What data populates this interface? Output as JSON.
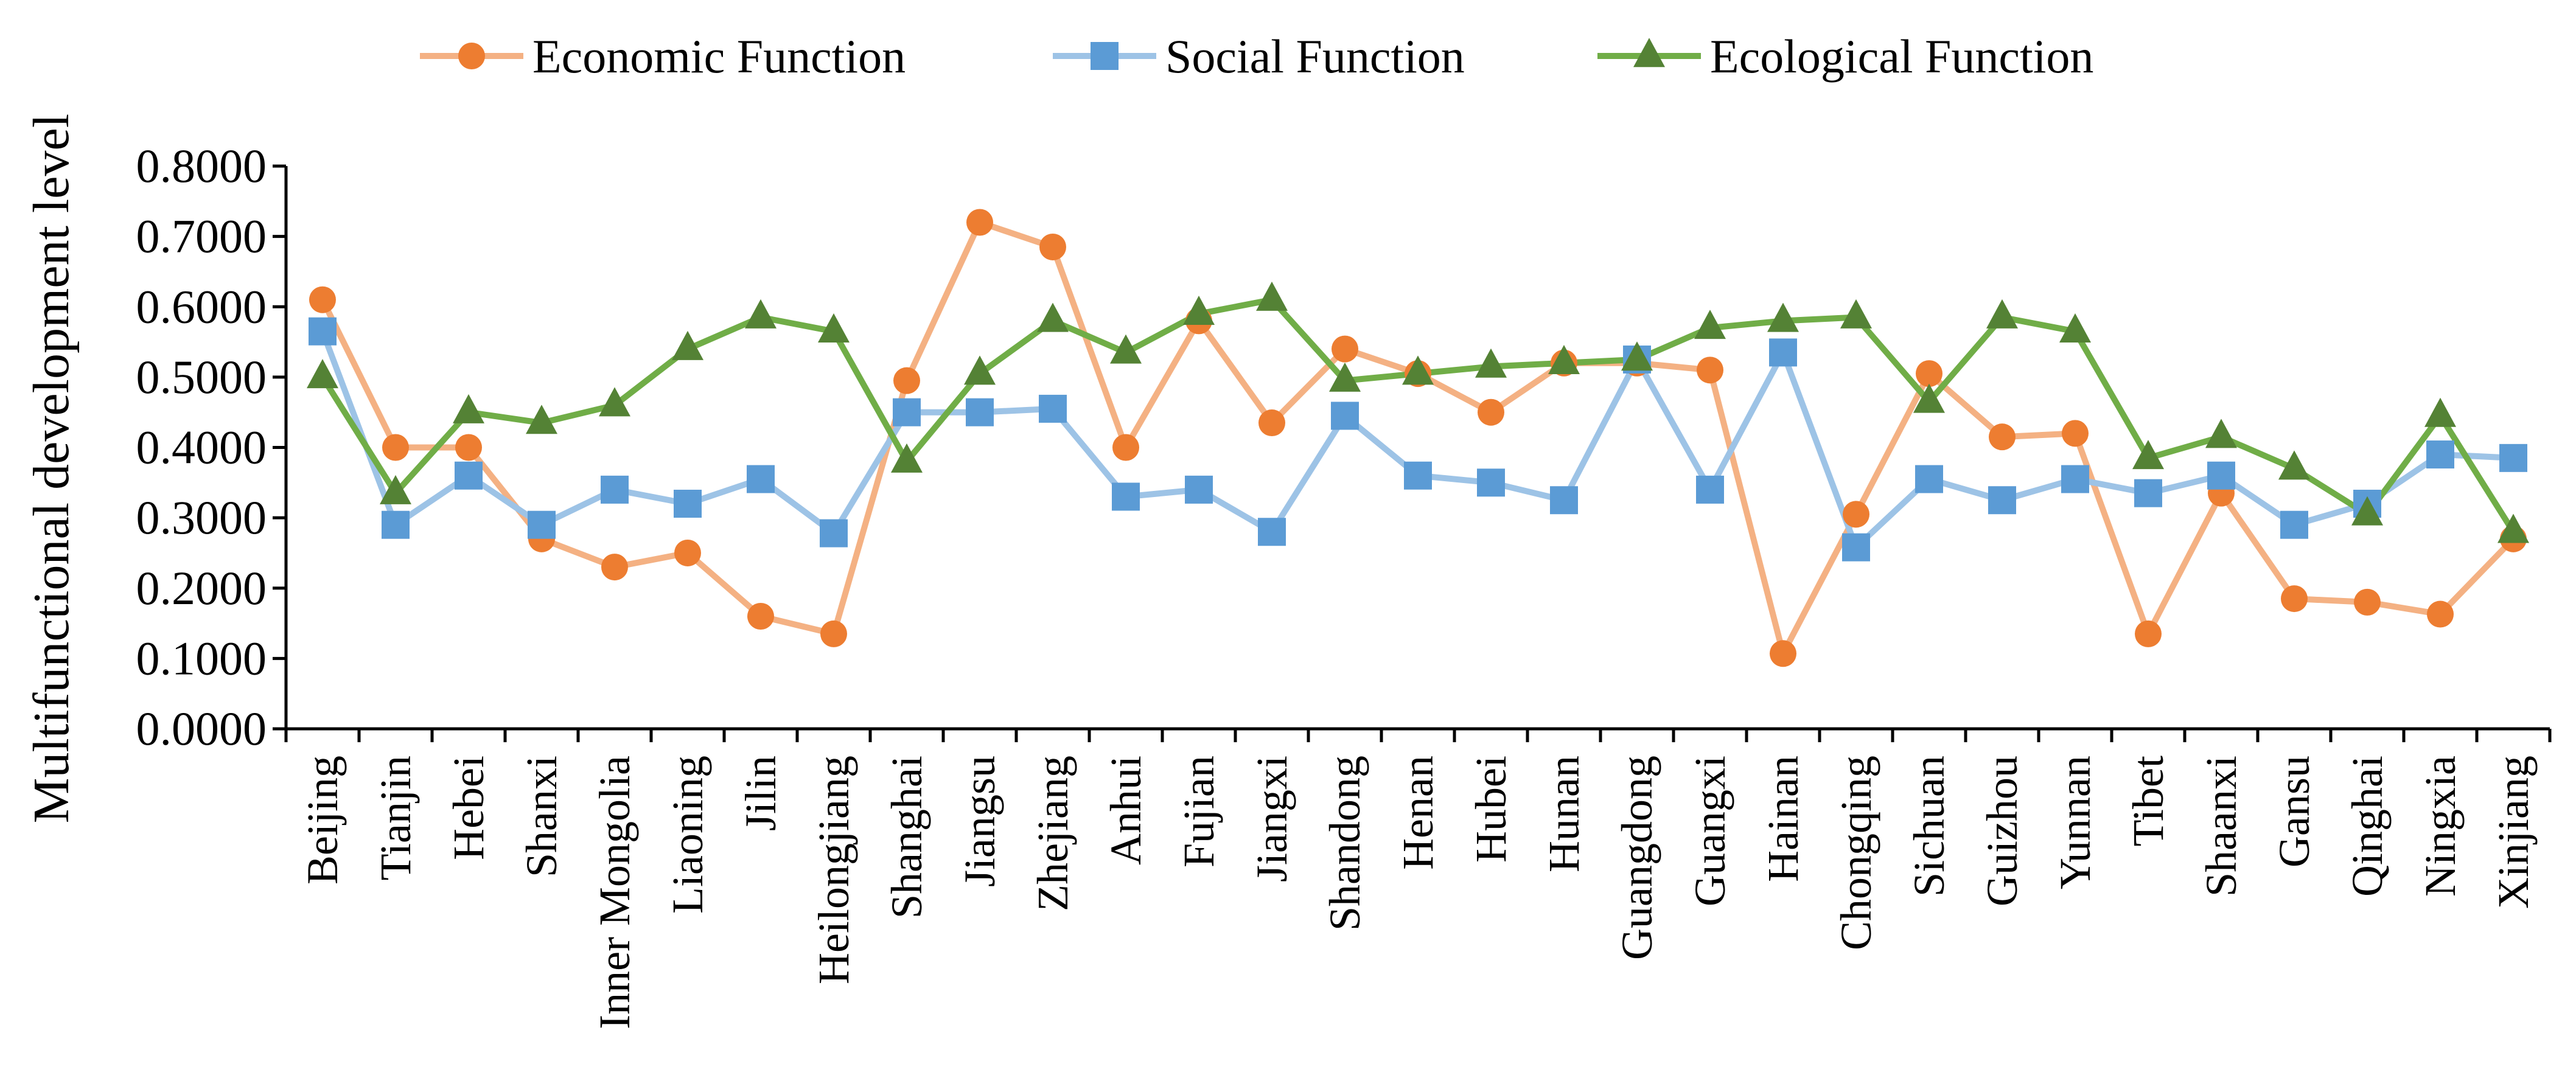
{
  "chart_data": {
    "type": "line",
    "title": "",
    "xlabel": "",
    "ylabel": "Multifunctional development level",
    "ylim": [
      0,
      0.8
    ],
    "yticks": [
      "0.0000",
      "0.1000",
      "0.2000",
      "0.3000",
      "0.4000",
      "0.5000",
      "0.6000",
      "0.7000",
      "0.8000"
    ],
    "grid": false,
    "legend_position": "top",
    "categories": [
      "Beijing",
      "Tianjin",
      "Hebei",
      "Shanxi",
      "Inner Mongolia",
      "Liaoning",
      "Jilin",
      "Heilongjiang",
      "Shanghai",
      "Jiangsu",
      "Zhejiang",
      "Anhui",
      "Fujian",
      "Jiangxi",
      "Shandong",
      "Henan",
      "Hubei",
      "Hunan",
      "Guangdong",
      "Guangxi",
      "Hainan",
      "Chongqing",
      "Sichuan",
      "Guizhou",
      "Yunnan",
      "Tibet",
      "Shaanxi",
      "Gansu",
      "Qinghai",
      "Ningxia",
      "Xinjiang"
    ],
    "series": [
      {
        "name": "Economic Function",
        "marker": "circle",
        "line_color": "#F4B183",
        "marker_color": "#ED7D31",
        "values": [
          0.61,
          0.4,
          0.4,
          0.27,
          0.23,
          0.25,
          0.16,
          0.135,
          0.495,
          0.72,
          0.685,
          0.4,
          0.58,
          0.435,
          0.54,
          0.505,
          0.45,
          0.52,
          0.52,
          0.51,
          0.107,
          0.305,
          0.505,
          0.415,
          0.42,
          0.135,
          0.335,
          0.185,
          0.18,
          0.163,
          0.27
        ]
      },
      {
        "name": "Social Function",
        "marker": "square",
        "line_color": "#9DC3E6",
        "marker_color": "#5B9BD5",
        "values": [
          0.565,
          0.29,
          0.36,
          0.29,
          0.34,
          0.32,
          0.355,
          0.278,
          0.45,
          0.45,
          0.455,
          0.33,
          0.34,
          0.28,
          0.445,
          0.36,
          0.35,
          0.325,
          0.525,
          0.34,
          0.535,
          0.258,
          0.355,
          0.325,
          0.355,
          0.335,
          0.36,
          0.29,
          0.32,
          0.39,
          0.385
        ]
      },
      {
        "name": "Ecological Function",
        "marker": "triangle",
        "line_color": "#70AD47",
        "marker_color": "#548235",
        "values": [
          0.5,
          0.335,
          0.45,
          0.435,
          0.46,
          0.54,
          0.585,
          0.565,
          0.38,
          0.505,
          0.58,
          0.535,
          0.59,
          0.61,
          0.495,
          0.505,
          0.515,
          0.52,
          0.525,
          0.57,
          0.58,
          0.585,
          0.465,
          0.585,
          0.565,
          0.385,
          0.415,
          0.37,
          0.305,
          0.445,
          0.28
        ]
      }
    ]
  }
}
